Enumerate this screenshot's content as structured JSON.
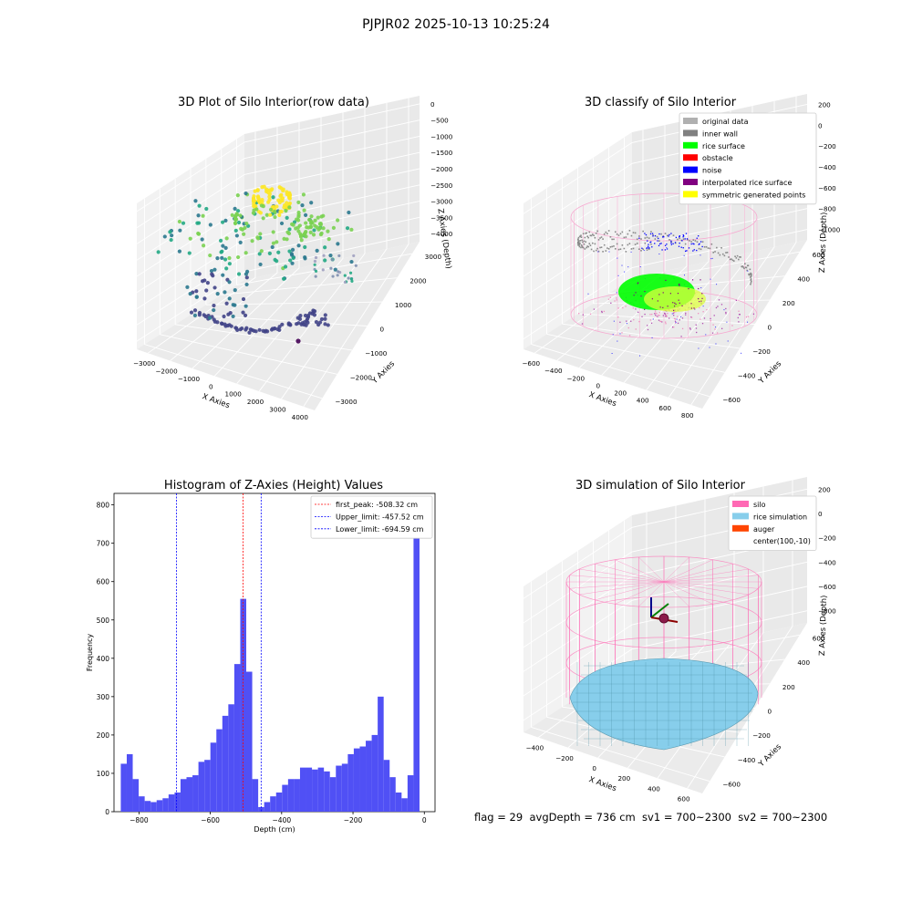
{
  "figure": {
    "suptitle": "PJPJR02 2025-10-13 10:25:24",
    "footer": "flag = 29  avgDepth = 736 cm  sv1 = 700~2300  sv2 = 700~2300"
  },
  "colors": {
    "hist_bar": "#5050f5",
    "first_peak": "#ff0000",
    "limit_line": "#0000ff",
    "silo": "#ff69b4",
    "rice_simulation": "#87ceeb",
    "auger": "#ff4500",
    "original_data": "#b0b0b0",
    "inner_wall": "#808080",
    "rice_surface": "#00ff00",
    "obstacle": "#ff0000",
    "noise": "#0000ff",
    "interpolated_rice_surface": "#800080",
    "symmetric_generated_points": "#ffff00"
  },
  "chart_data": [
    {
      "type": "scatter",
      "projection": "3d",
      "title": "3D Plot of Silo Interior(row data)",
      "xlabel": "X Axies",
      "ylabel": "Y Axies",
      "zlabel": "Z Axies (Depth)",
      "xticks": [
        "−3000",
        "−2000",
        "−1000",
        "0",
        "1000",
        "2000",
        "3000",
        "4000"
      ],
      "yticks": [
        "−3000",
        "−2000",
        "−1000",
        "0",
        "1000",
        "2000",
        "3000"
      ],
      "zticks": [
        "0",
        "−500",
        "−1000",
        "−1500",
        "−2000",
        "−2500",
        "−3000",
        "−3500",
        "−4000"
      ],
      "colormap": "viridis"
    },
    {
      "type": "scatter",
      "projection": "3d",
      "title": "3D classify of Silo Interior",
      "xlabel": "X Axies",
      "ylabel": "Y Axies",
      "zlabel": "Z Axies (Depth)",
      "xticks": [
        "−600",
        "−400",
        "−200",
        "0",
        "200",
        "400",
        "600",
        "800"
      ],
      "yticks": [
        "−600",
        "−400",
        "−200",
        "0",
        "200",
        "400",
        "600"
      ],
      "zticks": [
        "200",
        "0",
        "−200",
        "−400",
        "−600",
        "−800",
        "−1000"
      ],
      "legend": [
        "original data",
        "inner wall",
        "rice surface",
        "obstacle",
        "noise",
        "interpolated rice surface",
        "symmetric generated points"
      ],
      "legend_loc": "top-right"
    },
    {
      "type": "bar",
      "title": "Histogram of Z-Axies (Height) Values",
      "xlabel": "Depth (cm)",
      "ylabel": "Frequency",
      "xlim": [
        -870,
        30
      ],
      "ylim": [
        0,
        830
      ],
      "xticks": [
        "−800",
        "−600",
        "−400",
        "−200",
        "0"
      ],
      "yticks": [
        "0",
        "100",
        "200",
        "300",
        "400",
        "500",
        "600",
        "700",
        "800"
      ],
      "bin_start": -851,
      "bin_width": 16.75,
      "values": [
        125,
        150,
        85,
        40,
        28,
        25,
        30,
        35,
        45,
        50,
        85,
        90,
        95,
        130,
        135,
        180,
        215,
        250,
        280,
        385,
        555,
        365,
        85,
        12,
        25,
        40,
        50,
        70,
        85,
        85,
        115,
        115,
        110,
        115,
        105,
        90,
        120,
        125,
        150,
        165,
        170,
        185,
        200,
        300,
        135,
        90,
        50,
        35,
        95,
        800
      ],
      "vlines": [
        {
          "x": -508.32,
          "label": "first_peak: -508.32 cm",
          "color": "#ff0000"
        },
        {
          "x": -457.52,
          "label": "Upper_limit: -457.52 cm",
          "color": "#0000ff"
        },
        {
          "x": -694.59,
          "label": "Lower_limit: -694.59 cm",
          "color": "#0000ff"
        }
      ],
      "legend_loc": "top-right"
    },
    {
      "type": "surface",
      "projection": "3d",
      "title": "3D simulation of Silo Interior",
      "xlabel": "X Axies",
      "ylabel": "Y Axies",
      "zlabel": "Z Axies (Depth)",
      "xticks": [
        "−400",
        "−200",
        "0",
        "200",
        "400",
        "600"
      ],
      "yticks": [
        "−600",
        "−400",
        "−200",
        "0",
        "200",
        "400",
        "600"
      ],
      "zticks": [
        "200",
        "0",
        "−200",
        "−400",
        "−600",
        "−800"
      ],
      "legend": [
        "silo",
        "rice simulation",
        "auger",
        "center(100,-10)"
      ],
      "legend_loc": "top-right"
    }
  ]
}
